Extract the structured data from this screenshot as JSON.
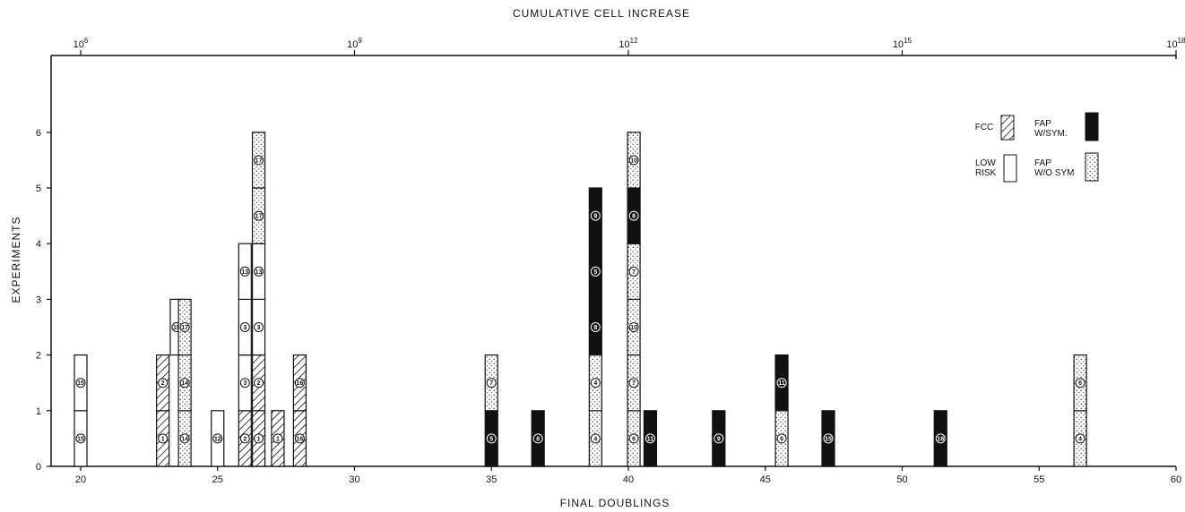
{
  "chart_data": {
    "type": "bar",
    "top_axis_title": "CUMULATIVE CELL INCREASE",
    "top_axis_ticks": [
      {
        "base": "10",
        "exp": "6",
        "value": 20
      },
      {
        "base": "10",
        "exp": "9",
        "value": 30
      },
      {
        "base": "10",
        "exp": "12",
        "value": 40
      },
      {
        "base": "10",
        "exp": "15",
        "value": 50
      },
      {
        "base": "10",
        "exp": "18",
        "value": 60
      }
    ],
    "xlabel": "FINAL DOUBLINGS",
    "ylabel": "EXPERIMENTS",
    "xlim": [
      19,
      60
    ],
    "ylim": [
      0,
      7
    ],
    "x_ticks": [
      "20",
      "25",
      "30",
      "35",
      "40",
      "45",
      "50",
      "55",
      "60"
    ],
    "y_ticks": [
      "0",
      "1",
      "2",
      "3",
      "4",
      "5",
      "6"
    ],
    "legend": {
      "placement": "top-right",
      "entries": [
        {
          "key": "fcc",
          "label": "FCC"
        },
        {
          "key": "fap_sym",
          "label": "FAP W/SYM."
        },
        {
          "key": "low",
          "label": "LOW RISK"
        },
        {
          "key": "fap_wo",
          "label": "FAP W/O SYM"
        }
      ]
    },
    "columns": [
      {
        "x": 20.0,
        "segments": [
          {
            "cat": "low",
            "label": "15"
          },
          {
            "cat": "low",
            "label": "15"
          }
        ]
      },
      {
        "x": 23.0,
        "segments": [
          {
            "cat": "fcc",
            "label": "1"
          },
          {
            "cat": "fcc",
            "label": "2"
          }
        ]
      },
      {
        "x": 23.5,
        "segments": [
          {
            "cat": "low",
            "label": "15"
          }
        ],
        "base": 2
      },
      {
        "x": 23.8,
        "segments": [
          {
            "cat": "fap_wo",
            "label": "14"
          },
          {
            "cat": "fap_wo",
            "label": "14"
          },
          {
            "cat": "fap_wo",
            "label": "17"
          }
        ]
      },
      {
        "x": 25.0,
        "segments": [
          {
            "cat": "low",
            "label": "12"
          }
        ]
      },
      {
        "x": 26.0,
        "segments": [
          {
            "cat": "fcc",
            "label": "2"
          },
          {
            "cat": "low",
            "label": "3"
          },
          {
            "cat": "low",
            "label": "3"
          },
          {
            "cat": "low",
            "label": "13"
          }
        ]
      },
      {
        "x": 26.5,
        "segments": [
          {
            "cat": "fcc",
            "label": "1"
          },
          {
            "cat": "fcc",
            "label": "2"
          },
          {
            "cat": "low",
            "label": "3"
          },
          {
            "cat": "low",
            "label": "13"
          },
          {
            "cat": "fap_wo",
            "label": "17"
          },
          {
            "cat": "fap_wo",
            "label": "17"
          }
        ]
      },
      {
        "x": 27.2,
        "segments": [
          {
            "cat": "fcc",
            "label": "1"
          }
        ]
      },
      {
        "x": 28.0,
        "segments": [
          {
            "cat": "fcc",
            "label": "16"
          },
          {
            "cat": "fcc",
            "label": "16"
          }
        ]
      },
      {
        "x": 35.0,
        "segments": [
          {
            "cat": "fap_sym",
            "label": "5"
          },
          {
            "cat": "fap_wo",
            "label": "7"
          }
        ]
      },
      {
        "x": 36.7,
        "segments": [
          {
            "cat": "fap_sym",
            "label": "8"
          }
        ]
      },
      {
        "x": 38.8,
        "segments": [
          {
            "cat": "fap_wo",
            "label": "4"
          },
          {
            "cat": "fap_wo",
            "label": "4"
          },
          {
            "cat": "fap_sym",
            "label": "8"
          },
          {
            "cat": "fap_sym",
            "label": "5"
          },
          {
            "cat": "fap_sym",
            "label": "9"
          }
        ]
      },
      {
        "x": 40.2,
        "segments": [
          {
            "cat": "fap_wo",
            "label": "6"
          },
          {
            "cat": "fap_wo",
            "label": "7"
          },
          {
            "cat": "fap_wo",
            "label": "10"
          },
          {
            "cat": "fap_wo",
            "label": "7"
          },
          {
            "cat": "fap_sym",
            "label": "8"
          },
          {
            "cat": "fap_wo",
            "label": "10"
          }
        ]
      },
      {
        "x": 40.8,
        "segments": [
          {
            "cat": "fap_sym",
            "label": "11"
          }
        ]
      },
      {
        "x": 43.3,
        "segments": [
          {
            "cat": "fap_sym",
            "label": "9"
          }
        ]
      },
      {
        "x": 45.6,
        "segments": [
          {
            "cat": "fap_wo",
            "label": "6"
          },
          {
            "cat": "fap_sym",
            "label": "11"
          }
        ]
      },
      {
        "x": 47.3,
        "segments": [
          {
            "cat": "fap_sym",
            "label": "15"
          }
        ]
      },
      {
        "x": 51.4,
        "segments": [
          {
            "cat": "fap_sym",
            "label": "18"
          }
        ]
      },
      {
        "x": 56.5,
        "segments": [
          {
            "cat": "fap_wo",
            "label": "4"
          },
          {
            "cat": "fap_wo",
            "label": "6"
          }
        ]
      }
    ]
  }
}
